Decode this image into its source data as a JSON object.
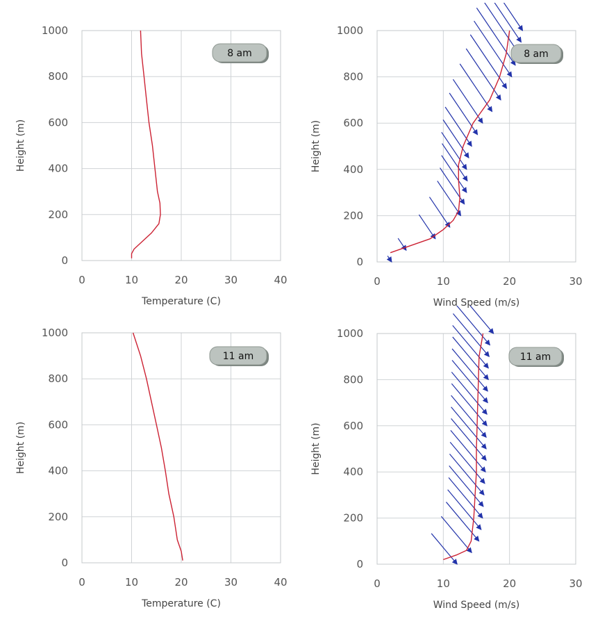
{
  "colors": {
    "temperature": "#cc2233",
    "wind_speed": "#cc2233",
    "wind_vector": "#2233aa",
    "grid": "#cfd3d6",
    "badge": "#bcc3bf"
  },
  "chart_data": [
    {
      "id": "temp8",
      "type": "line",
      "label": "8 am",
      "xlabel": "Temperature (C)",
      "ylabel": "Height (m)",
      "xlim": [
        0,
        40
      ],
      "ylim": [
        0,
        1000
      ],
      "xticks": [
        0,
        10,
        20,
        30,
        40
      ],
      "yticks": [
        0,
        200,
        400,
        600,
        800,
        1000
      ],
      "grid": true,
      "series": [
        {
          "color": "#cc2233",
          "points": [
            [
              10,
              10
            ],
            [
              10,
              30
            ],
            [
              10.5,
              50
            ],
            [
              12,
              80
            ],
            [
              14,
              120
            ],
            [
              15.5,
              160
            ],
            [
              15.8,
              200
            ],
            [
              15.7,
              250
            ],
            [
              15.2,
              300
            ],
            [
              14.7,
              400
            ],
            [
              14.2,
              500
            ],
            [
              13.5,
              600
            ],
            [
              13,
              700
            ],
            [
              12.5,
              800
            ],
            [
              12,
              900
            ],
            [
              11.8,
              1000
            ]
          ]
        }
      ]
    },
    {
      "id": "wind8",
      "type": "line",
      "label": "8 am",
      "xlabel": "Wind Speed (m/s)",
      "ylabel": "Height (m)",
      "xlim": [
        0,
        30
      ],
      "ylim": [
        0,
        1000
      ],
      "xticks": [
        0,
        10,
        20,
        30
      ],
      "yticks": [
        0,
        200,
        400,
        600,
        800,
        1000
      ],
      "grid": true,
      "series": [
        {
          "color": "#cc2233",
          "points": [
            [
              2,
              40
            ],
            [
              5,
              70
            ],
            [
              8,
              100
            ],
            [
              10,
              140
            ],
            [
              11.5,
              180
            ],
            [
              12.3,
              220
            ],
            [
              12.5,
              280
            ],
            [
              12.3,
              350
            ],
            [
              12.3,
              420
            ],
            [
              13,
              500
            ],
            [
              14.5,
              600
            ],
            [
              17,
              700
            ],
            [
              18.5,
              800
            ],
            [
              19.5,
              900
            ],
            [
              20,
              1000
            ]
          ]
        }
      ],
      "vectors": {
        "color": "#2233aa",
        "direction_deg": -56,
        "length_scale": 1.0,
        "heights": [
          0,
          50,
          100,
          150,
          200,
          250,
          300,
          350,
          400,
          450,
          500,
          550,
          600,
          650,
          700,
          750,
          800,
          850,
          900,
          950,
          1000
        ],
        "speeds": [
          2,
          4,
          8,
          10,
          11.5,
          12,
          12.3,
          12.4,
          12.3,
          12.6,
          13,
          13.8,
          14.5,
          15.8,
          17,
          17.8,
          18.5,
          19,
          19.5,
          19.8,
          20
        ]
      }
    },
    {
      "id": "temp11",
      "type": "line",
      "label": "11 am",
      "xlabel": "Temperature (C)",
      "ylabel": "Height (m)",
      "xlim": [
        0,
        40
      ],
      "ylim": [
        0,
        1000
      ],
      "xticks": [
        0,
        10,
        20,
        30,
        40
      ],
      "yticks": [
        0,
        200,
        400,
        600,
        800,
        1000
      ],
      "grid": true,
      "series": [
        {
          "color": "#cc2233",
          "points": [
            [
              20.3,
              10
            ],
            [
              20,
              50
            ],
            [
              19.2,
              100
            ],
            [
              18.5,
              200
            ],
            [
              17.5,
              300
            ],
            [
              16.8,
              400
            ],
            [
              16,
              500
            ],
            [
              15,
              600
            ],
            [
              14,
              700
            ],
            [
              13,
              800
            ],
            [
              11.8,
              900
            ],
            [
              10.3,
              1000
            ]
          ]
        }
      ]
    },
    {
      "id": "wind11",
      "type": "line",
      "label": "11 am",
      "xlabel": "Wind Speed (m/s)",
      "ylabel": "Height (m)",
      "xlim": [
        0,
        30
      ],
      "ylim": [
        0,
        1000
      ],
      "xticks": [
        0,
        10,
        20,
        30
      ],
      "yticks": [
        0,
        200,
        400,
        600,
        800,
        1000
      ],
      "grid": true,
      "series": [
        {
          "color": "#cc2233",
          "points": [
            [
              10,
              20
            ],
            [
              12,
              40
            ],
            [
              13.5,
              60
            ],
            [
              14.2,
              100
            ],
            [
              14.6,
              200
            ],
            [
              14.8,
              300
            ],
            [
              15,
              400
            ],
            [
              15,
              500
            ],
            [
              15.1,
              600
            ],
            [
              15.2,
              700
            ],
            [
              15.3,
              800
            ],
            [
              15.4,
              900
            ],
            [
              16,
              1000
            ]
          ]
        }
      ],
      "vectors": {
        "color": "#2233aa",
        "direction_deg": -50,
        "length_scale": 1.0,
        "heights": [
          0,
          50,
          100,
          150,
          200,
          250,
          300,
          350,
          400,
          450,
          500,
          550,
          600,
          650,
          700,
          750,
          800,
          850,
          900,
          950,
          1000
        ],
        "speeds": [
          11,
          13,
          14,
          14.3,
          14.5,
          14.6,
          14.7,
          14.8,
          14.9,
          15,
          15,
          15,
          15.1,
          15.1,
          15.2,
          15.2,
          15.3,
          15.3,
          15.4,
          15.5,
          16
        ]
      }
    }
  ]
}
